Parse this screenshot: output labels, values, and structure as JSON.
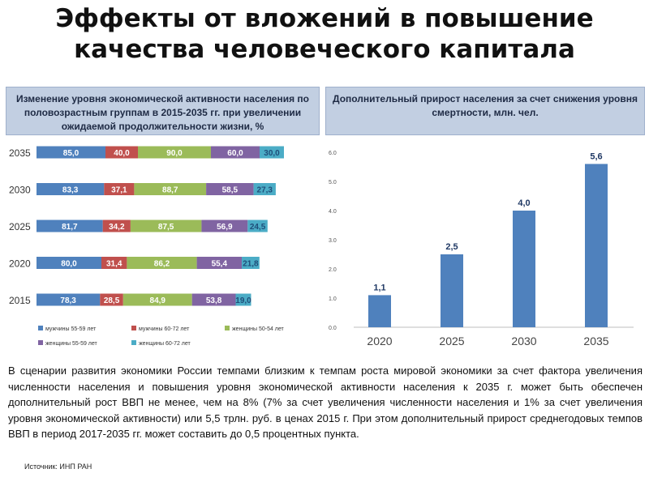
{
  "title": "Эффекты от вложений в повышение качества человеческого капитала",
  "left_panel": {
    "header": "Изменение уровня экономической активности населения по половозрастным группам в 2015-2035 гг. при увеличении ожидаемой продолжительности жизни, %"
  },
  "right_panel": {
    "header": "Дополнительный прирост населения за счет снижения уровня смертности, млн. чел."
  },
  "paragraph": "В сценарии развития экономики России темпами близким к темпам роста мировой экономики за счет фактора увеличения численности населения и повышения уровня экономической активности населения к 2035 г. может быть обеспечен дополнительный рост ВВП не менее, чем на 8% (7% за счет увеличения численности населения и 1% за счет увеличения уровня экономической активности) или 5,5 трлн. руб. в ценах 2015 г. При этом дополнительный прирост среднегодовых темпов ВВП в период 2017-2035 гг. может составить до 0,5 процентных пункта.",
  "source": "Источник: ИНП РАН",
  "chart_data": [
    {
      "type": "bar",
      "orientation": "horizontal",
      "stacked": true,
      "categories": [
        "2035",
        "2030",
        "2025",
        "2020",
        "2015"
      ],
      "series": [
        {
          "name": "мужчины 55-59 лет",
          "color": "#4f81bd",
          "values": [
            85.0,
            83.3,
            81.7,
            80.0,
            78.3
          ],
          "labels": [
            "85,0",
            "83,3",
            "81,7",
            "80,0",
            "78,3"
          ]
        },
        {
          "name": "мужчины 60-72 лет",
          "color": "#c0504d",
          "values": [
            40.0,
            37.1,
            34.2,
            31.4,
            28.5
          ],
          "labels": [
            "40,0",
            "37,1",
            "34,2",
            "31,4",
            "28,5"
          ]
        },
        {
          "name": "женщины 50-54 лет",
          "color": "#9bbb59",
          "values": [
            90.0,
            88.7,
            87.5,
            86.2,
            84.9
          ],
          "labels": [
            "90,0",
            "88,7",
            "87,5",
            "86,2",
            "84,9"
          ]
        },
        {
          "name": "женщины 55-59 лет",
          "color": "#8064a2",
          "values": [
            60.0,
            58.5,
            56.9,
            55.4,
            53.8
          ],
          "labels": [
            "60,0",
            "58,5",
            "56,9",
            "55,4",
            "53,8"
          ]
        },
        {
          "name": "женщины 60-72 лет",
          "color": "#4bacc6",
          "values": [
            30.0,
            27.3,
            24.5,
            21.8,
            19.0
          ],
          "labels": [
            "30,0",
            "27,3",
            "24,5",
            "21,8",
            "19,0"
          ]
        }
      ],
      "legend_position": "bottom",
      "grid": false
    },
    {
      "type": "bar",
      "categories": [
        "2020",
        "2025",
        "2030",
        "2035"
      ],
      "values": [
        1.1,
        2.5,
        4.0,
        5.6
      ],
      "value_labels": [
        "1,1",
        "2,5",
        "4,0",
        "5,6"
      ],
      "ylim": [
        0,
        6
      ],
      "yticks": [
        "0.0",
        "1.0",
        "2.0",
        "3.0",
        "4.0",
        "5.0",
        "6.0"
      ],
      "color": "#4f81bd",
      "grid": false
    }
  ]
}
